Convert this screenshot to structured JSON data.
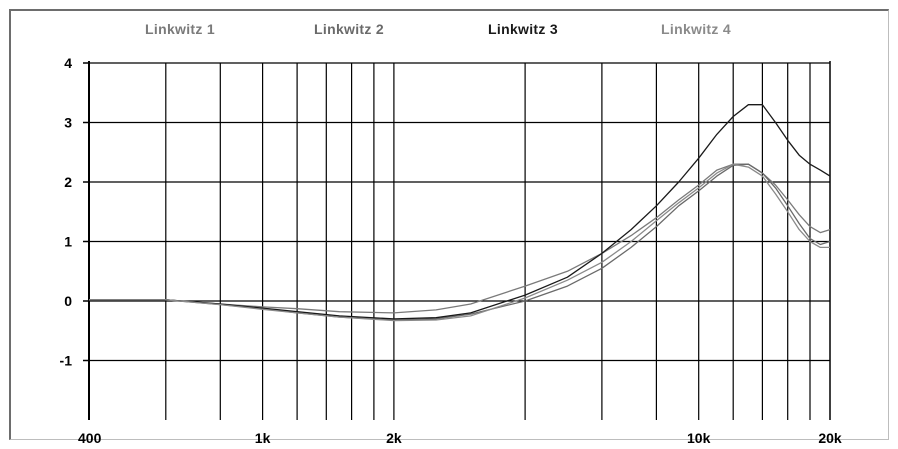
{
  "chart_data": {
    "type": "line",
    "title": "",
    "xlabel": "",
    "ylabel": "",
    "x_scale": "log",
    "xlim": [
      400,
      20000
    ],
    "ylim": [
      -2,
      4
    ],
    "grid": true,
    "legend_placement": "top",
    "x_ticks": [
      {
        "value": 400,
        "label": "400"
      },
      {
        "value": 1000,
        "label": "1k"
      },
      {
        "value": 2000,
        "label": "2k"
      },
      {
        "value": 10000,
        "label": "10k"
      },
      {
        "value": 20000,
        "label": "20k"
      }
    ],
    "x_gridlines": [
      400,
      600,
      800,
      900,
      1000,
      2000,
      3000,
      4000,
      5000,
      6000,
      7000,
      8000,
      9000,
      10000,
      11000,
      12000,
      13000,
      14000,
      15000,
      16000,
      17000,
      18000,
      19000
    ],
    "x_gridlines_drawn": [
      600,
      800,
      1000,
      1200,
      1400,
      1600,
      1800,
      2000,
      4000,
      6000,
      8000,
      10000,
      12000,
      14000,
      16000,
      18000
    ],
    "y_ticks": [
      {
        "value": 4,
        "label": "4"
      },
      {
        "value": 3,
        "label": "3"
      },
      {
        "value": 2,
        "label": "2"
      },
      {
        "value": 1,
        "label": "1"
      },
      {
        "value": 0,
        "label": "0"
      },
      {
        "value": -1,
        "label": "-1"
      }
    ],
    "series": [
      {
        "name": "Linkwitz 1",
        "color": "#7a7a7a",
        "points": [
          [
            400,
            0.02
          ],
          [
            600,
            0.02
          ],
          [
            800,
            -0.05
          ],
          [
            1000,
            -0.1
          ],
          [
            1200,
            -0.13
          ],
          [
            1500,
            -0.18
          ],
          [
            2000,
            -0.2
          ],
          [
            2500,
            -0.15
          ],
          [
            3000,
            -0.05
          ],
          [
            4000,
            0.25
          ],
          [
            5000,
            0.5
          ],
          [
            6000,
            0.8
          ],
          [
            7000,
            1.1
          ],
          [
            8000,
            1.4
          ],
          [
            9000,
            1.7
          ],
          [
            10000,
            1.95
          ],
          [
            11000,
            2.2
          ],
          [
            12000,
            2.3
          ],
          [
            13000,
            2.3
          ],
          [
            14000,
            2.15
          ],
          [
            15000,
            1.95
          ],
          [
            16000,
            1.7
          ],
          [
            17000,
            1.45
          ],
          [
            18000,
            1.25
          ],
          [
            19000,
            1.15
          ],
          [
            20000,
            1.2
          ]
        ]
      },
      {
        "name": "Linkwitz 2",
        "color": "#6a6a6a",
        "points": [
          [
            400,
            0.02
          ],
          [
            600,
            0.02
          ],
          [
            800,
            -0.06
          ],
          [
            1000,
            -0.13
          ],
          [
            1200,
            -0.2
          ],
          [
            1500,
            -0.27
          ],
          [
            2000,
            -0.32
          ],
          [
            2500,
            -0.3
          ],
          [
            3000,
            -0.22
          ],
          [
            4000,
            0.0
          ],
          [
            5000,
            0.25
          ],
          [
            6000,
            0.55
          ],
          [
            7000,
            0.9
          ],
          [
            8000,
            1.25
          ],
          [
            9000,
            1.6
          ],
          [
            10000,
            1.85
          ],
          [
            11000,
            2.1
          ],
          [
            12000,
            2.28
          ],
          [
            13000,
            2.3
          ],
          [
            14000,
            2.15
          ],
          [
            15000,
            1.9
          ],
          [
            16000,
            1.6
          ],
          [
            17000,
            1.3
          ],
          [
            18000,
            1.05
          ],
          [
            19000,
            0.95
          ],
          [
            20000,
            1.0
          ]
        ]
      },
      {
        "name": "Linkwitz 3",
        "color": "#1a1a1a",
        "points": [
          [
            400,
            0.02
          ],
          [
            600,
            0.02
          ],
          [
            800,
            -0.05
          ],
          [
            1000,
            -0.12
          ],
          [
            1200,
            -0.18
          ],
          [
            1500,
            -0.25
          ],
          [
            2000,
            -0.3
          ],
          [
            2500,
            -0.28
          ],
          [
            3000,
            -0.2
          ],
          [
            4000,
            0.1
          ],
          [
            5000,
            0.4
          ],
          [
            6000,
            0.8
          ],
          [
            7000,
            1.2
          ],
          [
            8000,
            1.6
          ],
          [
            9000,
            2.0
          ],
          [
            10000,
            2.4
          ],
          [
            11000,
            2.8
          ],
          [
            12000,
            3.1
          ],
          [
            13000,
            3.3
          ],
          [
            14000,
            3.3
          ],
          [
            15000,
            3.0
          ],
          [
            16000,
            2.7
          ],
          [
            17000,
            2.45
          ],
          [
            18000,
            2.3
          ],
          [
            19000,
            2.2
          ],
          [
            20000,
            2.1
          ]
        ]
      },
      {
        "name": "Linkwitz 4",
        "color": "#8a8a8a",
        "points": [
          [
            400,
            0.02
          ],
          [
            600,
            0.02
          ],
          [
            800,
            -0.06
          ],
          [
            1000,
            -0.14
          ],
          [
            1200,
            -0.2
          ],
          [
            1500,
            -0.27
          ],
          [
            2000,
            -0.33
          ],
          [
            2500,
            -0.32
          ],
          [
            3000,
            -0.25
          ],
          [
            4000,
            0.05
          ],
          [
            5000,
            0.35
          ],
          [
            6000,
            0.65
          ],
          [
            7000,
            1.0
          ],
          [
            8000,
            1.35
          ],
          [
            9000,
            1.65
          ],
          [
            10000,
            1.9
          ],
          [
            11000,
            2.15
          ],
          [
            12000,
            2.3
          ],
          [
            13000,
            2.25
          ],
          [
            14000,
            2.1
          ],
          [
            15000,
            1.8
          ],
          [
            16000,
            1.5
          ],
          [
            17000,
            1.2
          ],
          [
            18000,
            1.0
          ],
          [
            19000,
            0.9
          ],
          [
            20000,
            0.9
          ]
        ]
      }
    ]
  }
}
